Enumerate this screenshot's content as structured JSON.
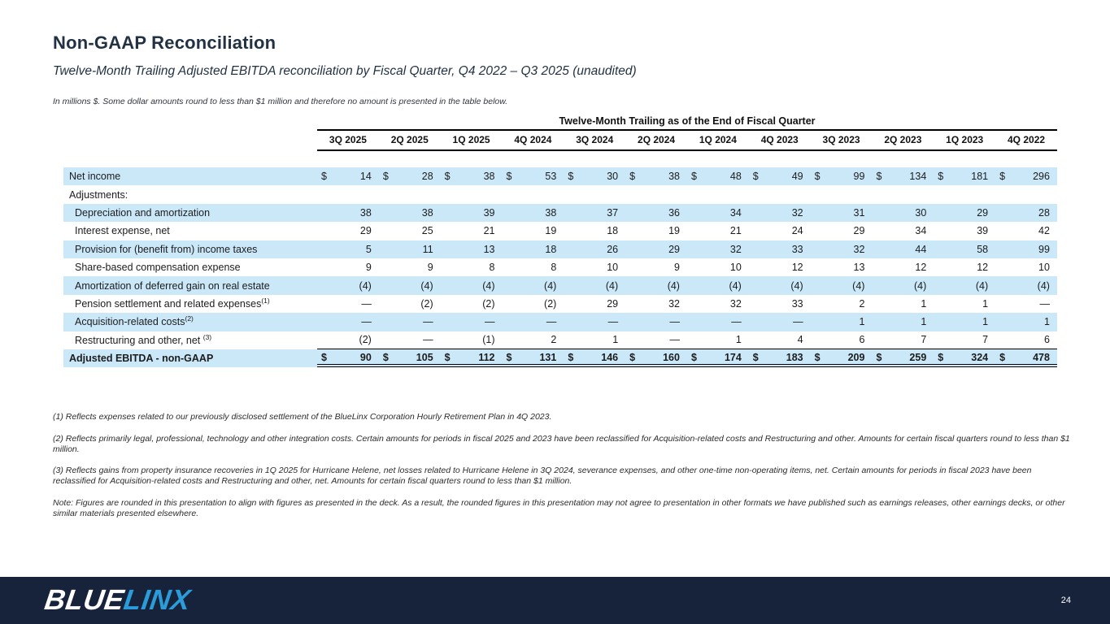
{
  "slide": {
    "title": "Non-GAAP Reconciliation",
    "subtitle": "Twelve-Month Trailing Adjusted EBITDA reconciliation by Fiscal Quarter, Q4 2022 – Q3 2025 (unaudited)",
    "units_note": "In millions $.   Some dollar amounts round to less than $1 million and therefore no amount is presented in the table below."
  },
  "table": {
    "group_header": "Twelve-Month Trailing as of the End of Fiscal Quarter",
    "currency_symbol": "$",
    "columns": [
      "3Q 2025",
      "2Q 2025",
      "1Q 2025",
      "4Q 2024",
      "3Q 2024",
      "2Q 2024",
      "1Q 2024",
      "4Q 2023",
      "3Q 2023",
      "2Q 2023",
      "1Q 2023",
      "4Q 2022"
    ],
    "rows": [
      {
        "label": "Net income",
        "highlight": true,
        "dollar": true,
        "values": [
          "14",
          "28",
          "38",
          "53",
          "30",
          "38",
          "48",
          "49",
          "99",
          "134",
          "181",
          "296"
        ]
      },
      {
        "label": "Adjustments:",
        "highlight": false,
        "values": []
      },
      {
        "label": "Depreciation and amortization",
        "indent": true,
        "highlight": true,
        "values": [
          "38",
          "38",
          "39",
          "38",
          "37",
          "36",
          "34",
          "32",
          "31",
          "30",
          "29",
          "28"
        ]
      },
      {
        "label": "Interest expense, net",
        "indent": true,
        "highlight": false,
        "values": [
          "29",
          "25",
          "21",
          "19",
          "18",
          "19",
          "21",
          "24",
          "29",
          "34",
          "39",
          "42"
        ]
      },
      {
        "label": "Provision for (benefit from) income taxes",
        "indent": true,
        "highlight": true,
        "values": [
          "5",
          "11",
          "13",
          "18",
          "26",
          "29",
          "32",
          "33",
          "32",
          "44",
          "58",
          "99"
        ]
      },
      {
        "label": "Share-based compensation expense",
        "indent": true,
        "highlight": false,
        "values": [
          "9",
          "9",
          "8",
          "8",
          "10",
          "9",
          "10",
          "12",
          "13",
          "12",
          "12",
          "10"
        ]
      },
      {
        "label": "Amortization of deferred gain on real estate",
        "indent": true,
        "highlight": true,
        "values": [
          "(4)",
          "(4)",
          "(4)",
          "(4)",
          "(4)",
          "(4)",
          "(4)",
          "(4)",
          "(4)",
          "(4)",
          "(4)",
          "(4)"
        ]
      },
      {
        "label": "Pension settlement and related expenses",
        "sup": "(1)",
        "indent": true,
        "highlight": false,
        "values": [
          "—",
          "(2)",
          "(2)",
          "(2)",
          "29",
          "32",
          "32",
          "33",
          "2",
          "1",
          "1",
          "—"
        ]
      },
      {
        "label": "Acquisition-related costs",
        "sup": "(2)",
        "indent": true,
        "highlight": true,
        "values": [
          "—",
          "—",
          "—",
          "—",
          "—",
          "—",
          "—",
          "—",
          "1",
          "1",
          "1",
          "1"
        ]
      },
      {
        "label": "Restructuring and other, net ",
        "sup": "(3)",
        "indent": true,
        "highlight": false,
        "rule_below": true,
        "values": [
          "(2)",
          "—",
          "(1)",
          "2",
          "1",
          "—",
          "1",
          "4",
          "6",
          "7",
          "7",
          "6"
        ]
      },
      {
        "label": "Adjusted EBITDA - non-GAAP",
        "bold": true,
        "highlight": true,
        "dollar": true,
        "double_rule_below": true,
        "values": [
          "90",
          "105",
          "112",
          "131",
          "146",
          "160",
          "174",
          "183",
          "209",
          "259",
          "324",
          "478"
        ]
      }
    ]
  },
  "footnotes": [
    "(1) Reflects expenses related to our previously disclosed settlement of the BlueLinx Corporation Hourly Retirement Plan in 4Q 2023.",
    "(2) Reflects primarily legal, professional, technology and other integration costs. Certain amounts for periods in fiscal 2025 and 2023 have been reclassified for Acquisition-related costs and Restructuring and other.  Amounts for certain fiscal quarters round to less than $1 million.",
    "(3) Reflects gains from property insurance recoveries in 1Q 2025 for Hurricane Helene, net losses related to Hurricane Helene in 3Q 2024, severance expenses, and other one-time non-operating items, net. Certain amounts for periods in fiscal 2023 have been reclassified for Acquisition-related costs and Restructuring and other, net.   Amounts for certain fiscal quarters round to less than $1 million.",
    "Note: Figures are rounded in this presentation to align with figures as presented in the deck.  As a result, the rounded figures in this presentation may not agree to presentation in other formats we have published such as earnings releases, other earnings decks, or other similar materials presented elsewhere."
  ],
  "footer": {
    "logo_blue_part": "BLUE",
    "logo_linx_part": "LINX",
    "page_number": "24"
  },
  "colors": {
    "row_highlight": "#cbe8f9",
    "footer_navy": "#16233a",
    "logo_blue": "#2b9cd9",
    "heading_navy": "#223243"
  }
}
